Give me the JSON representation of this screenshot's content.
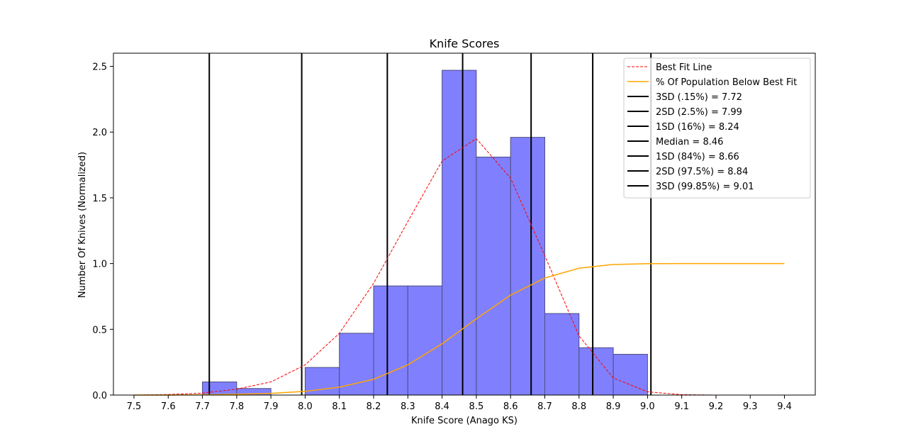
{
  "chart_data": {
    "type": "bar",
    "title": "Knife Scores",
    "xlabel": "Knife Score (Anago KS)",
    "ylabel": "Number Of Knives (Normalized)",
    "xlim": [
      7.44,
      9.49
    ],
    "ylim": [
      0,
      2.6
    ],
    "x_ticks": [
      7.5,
      7.6,
      7.7,
      7.8,
      7.9,
      8.0,
      8.1,
      8.2,
      8.3,
      8.4,
      8.5,
      8.6,
      8.7,
      8.8,
      8.9,
      9.0,
      9.1,
      9.2,
      9.3,
      9.4
    ],
    "x_tick_labels": [
      "7.5",
      "7.6",
      "7.7",
      "7.8",
      "7.9",
      "8.0",
      "8.1",
      "8.2",
      "8.3",
      "8.4",
      "8.5",
      "8.6",
      "8.7",
      "8.8",
      "8.9",
      "9.0",
      "9.1",
      "9.2",
      "9.3",
      "9.4"
    ],
    "y_ticks": [
      0.0,
      0.5,
      1.0,
      1.5,
      2.0,
      2.5
    ],
    "y_tick_labels": [
      "0.0",
      "0.5",
      "1.0",
      "1.5",
      "2.0",
      "2.5"
    ],
    "grid": false,
    "histogram": {
      "bin_edges": [
        7.7,
        7.8,
        7.9,
        8.0,
        8.1,
        8.2,
        8.3,
        8.4,
        8.5,
        8.6,
        8.7,
        8.8,
        8.9,
        9.0
      ],
      "values": [
        0.1,
        0.05,
        0.0,
        0.21,
        0.47,
        0.83,
        0.83,
        2.47,
        1.81,
        1.96,
        0.62,
        0.36,
        0.31
      ],
      "color": "#8080ff",
      "edge_color": "#4d4d80"
    },
    "series": [
      {
        "name": "Best Fit Line",
        "style": "dashed",
        "color": "#ff0000",
        "x": [
          7.5,
          7.6,
          7.7,
          7.8,
          7.9,
          8.0,
          8.1,
          8.2,
          8.3,
          8.4,
          8.5,
          8.6,
          8.7,
          8.8,
          8.9,
          9.0,
          9.1,
          9.2,
          9.3,
          9.4
        ],
        "y": [
          0.0,
          0.004,
          0.015,
          0.045,
          0.1,
          0.23,
          0.47,
          0.85,
          1.32,
          1.78,
          1.95,
          1.65,
          1.06,
          0.45,
          0.13,
          0.025,
          0.003,
          0.0,
          0.0,
          0.0
        ]
      },
      {
        "name": "% Of Population Below Best Fit",
        "style": "solid",
        "color": "#ffa500",
        "x": [
          7.5,
          7.6,
          7.7,
          7.8,
          7.9,
          8.0,
          8.1,
          8.2,
          8.3,
          8.4,
          8.5,
          8.6,
          8.7,
          8.8,
          8.9,
          9.0,
          9.1,
          9.2,
          9.3,
          9.4
        ],
        "y": [
          0.0,
          0.0,
          0.002,
          0.006,
          0.013,
          0.028,
          0.06,
          0.12,
          0.23,
          0.39,
          0.58,
          0.76,
          0.89,
          0.965,
          0.993,
          0.999,
          1.0,
          1.0,
          1.0,
          1.0
        ]
      }
    ],
    "reference_lines": [
      {
        "label": "3SD (.15%) = 7.72",
        "x": 7.72
      },
      {
        "label": "2SD (2.5%) = 7.99",
        "x": 7.99
      },
      {
        "label": "1SD (16%) = 8.24",
        "x": 8.24
      },
      {
        "label": "Median = 8.46",
        "x": 8.46
      },
      {
        "label": "1SD (84%) = 8.66",
        "x": 8.66
      },
      {
        "label": "2SD (97.5%) = 8.84",
        "x": 8.84
      },
      {
        "label": "3SD (99.85%) = 9.01",
        "x": 9.01
      }
    ],
    "legend_position": "top-right"
  }
}
